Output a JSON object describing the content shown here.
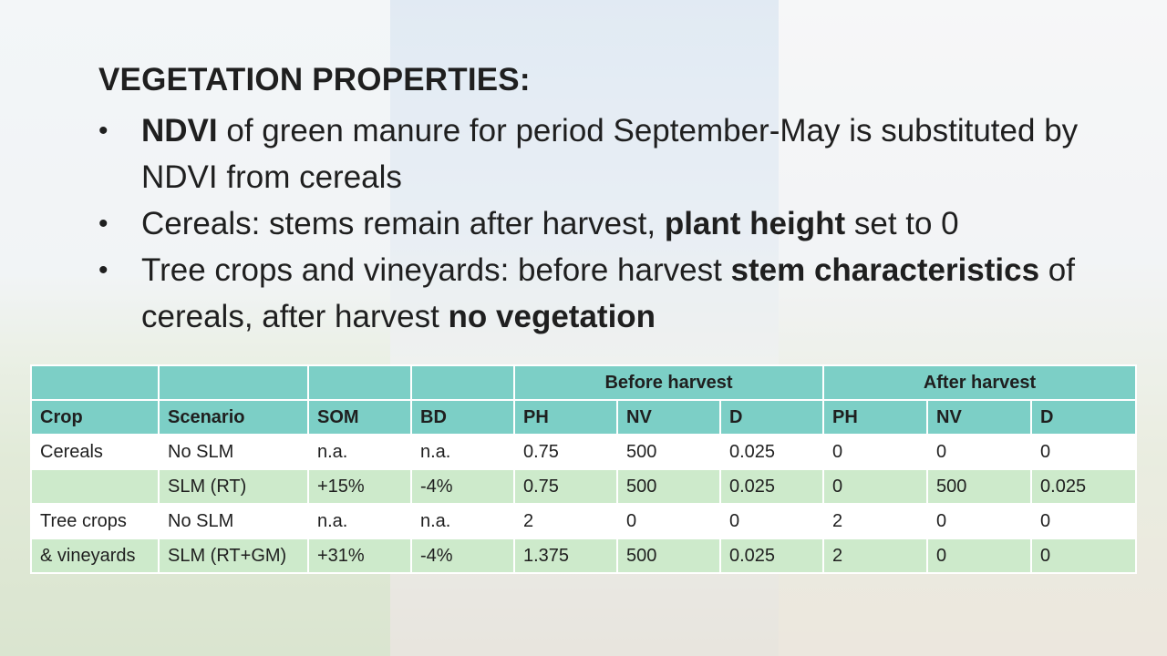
{
  "title": "VEGETATION PROPERTIES:",
  "bullets": [
    {
      "bold": "NDVI",
      "text": " of green manure for period September-May is substituted by NDVI from cereals"
    },
    {
      "text": "Cereals: stems remain after harvest, ",
      "bold": "plant height",
      "text2": " set to 0"
    },
    {
      "text": "Tree crops and vineyards: before harvest ",
      "bold": "stem characteristics",
      "text2": " of cereals, after harvest ",
      "bold2": "no vegetation"
    }
  ],
  "table": {
    "group_headers": {
      "before": "Before harvest",
      "after": "After harvest"
    },
    "headers": [
      "Crop",
      "Scenario",
      "SOM",
      "BD",
      "PH",
      "NV",
      "D",
      "PH",
      "NV",
      "D"
    ],
    "rows": [
      [
        "Cereals",
        "No SLM",
        "n.a.",
        "n.a.",
        "0.75",
        "500",
        "0.025",
        "0",
        "0",
        "0"
      ],
      [
        "",
        "SLM (RT)",
        "+15%",
        "-4%",
        "0.75",
        "500",
        "0.025",
        "0",
        "500",
        "0.025"
      ],
      [
        "Tree crops",
        "No SLM",
        "n.a.",
        "n.a.",
        "2",
        "0",
        "0",
        "2",
        "0",
        "0"
      ],
      [
        "& vineyards",
        "SLM (RT+GM)",
        "+31%",
        "-4%",
        "1.375",
        "500",
        "0.025",
        "2",
        "0",
        "0"
      ]
    ]
  },
  "colors": {
    "header": "#7ccfc6",
    "band": "#cdeacb",
    "row": "#ffffff"
  }
}
